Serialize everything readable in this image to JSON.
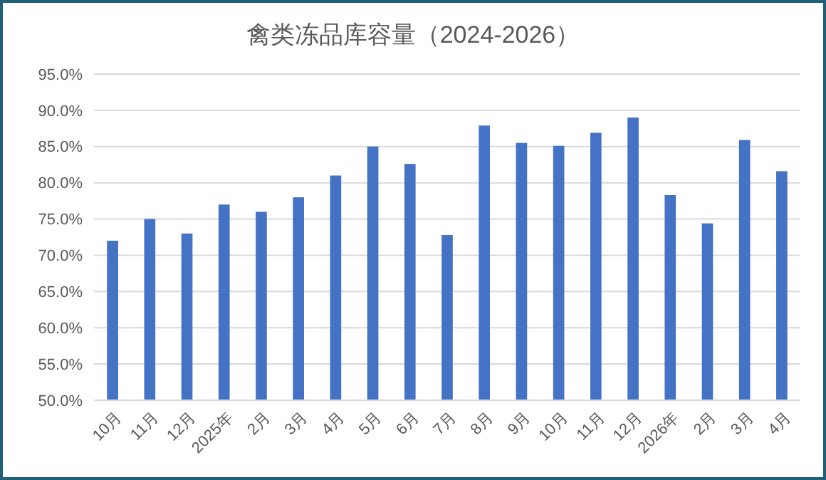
{
  "chart_data": {
    "type": "bar",
    "title": "禽类冻品库容量（2024-2026）",
    "categories": [
      "10月",
      "11月",
      "12月",
      "2025年",
      "2月",
      "3月",
      "4月",
      "5月",
      "6月",
      "7月",
      "8月",
      "9月",
      "10月",
      "11月",
      "12月",
      "2026年",
      "2月",
      "3月",
      "4月"
    ],
    "values": [
      72,
      75,
      73,
      77,
      76,
      78,
      81,
      85,
      82.6,
      72.8,
      87.9,
      85.5,
      85.1,
      86.9,
      89,
      78.3,
      74.4,
      85.9,
      81.6
    ],
    "color": "#4472c4",
    "ylim": [
      50,
      95
    ],
    "yticks": [
      {
        "value": 50,
        "label": "50.0%"
      },
      {
        "value": 55,
        "label": "55.0%"
      },
      {
        "value": 60,
        "label": "60.0%"
      },
      {
        "value": 65,
        "label": "65.0%"
      },
      {
        "value": 70,
        "label": "70.0%"
      },
      {
        "value": 75,
        "label": "75.0%"
      },
      {
        "value": 80,
        "label": "80.0%"
      },
      {
        "value": 85,
        "label": "85.0%"
      },
      {
        "value": 90,
        "label": "90.0%"
      },
      {
        "value": 95,
        "label": "95.0%"
      }
    ],
    "grid": "y"
  }
}
